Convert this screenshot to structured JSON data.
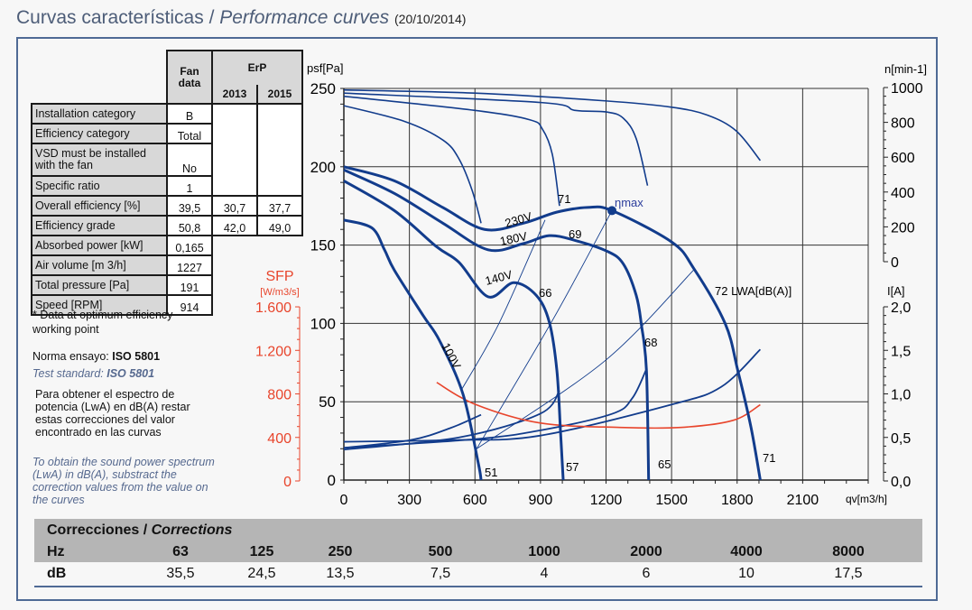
{
  "header": {
    "title_es": "Curvas características",
    "separator": " / ",
    "title_en": "Performance curves",
    "date": "(20/10/2014)"
  },
  "fan_table": {
    "col_fan": [
      "Fan",
      "data"
    ],
    "col_erp": "ErP",
    "col_2013": "2013",
    "col_2015": "2015",
    "rows": [
      {
        "label": "Installation category",
        "fan": "B",
        "y2013": "",
        "y2015": ""
      },
      {
        "label": "Efficiency category",
        "fan": "Total",
        "y2013": "",
        "y2015": ""
      },
      {
        "label": "VSD must be installed with the fan",
        "fan": "No",
        "y2013": "",
        "y2015": ""
      },
      {
        "label": "Specific ratio",
        "fan": "1",
        "y2013": "",
        "y2015": ""
      },
      {
        "label": "Overall efficiency [%]",
        "fan": "39,5",
        "y2013": "30,7",
        "y2015": "37,7"
      },
      {
        "label": "Efficiency grade",
        "fan": "50,8",
        "y2013": "42,0",
        "y2015": "49,0"
      },
      {
        "label": "Absorbed power [kW]",
        "fan": "0,165"
      },
      {
        "label": "Air volume [m 3/h]",
        "fan": "1227"
      },
      {
        "label": "Total pressure [Pa]",
        "fan": "191"
      },
      {
        "label": "Speed [RPM]",
        "fan": "914"
      }
    ]
  },
  "notes": {
    "optimum": "* Data at optimum efficiency working point",
    "norma_label": "Norma ensayo: ",
    "norma_value": "ISO 5801",
    "test_label": "Test standard: ",
    "test_value": "ISO 5801",
    "es_text": "Para obtener el espectro de potencia (LwA) en dB(A) restar estas correcciones del valor encontrado en las curvas",
    "en_text": "To obtain the sound power spectrum (LwA) in dB(A), substract the correction values from the value on the curves"
  },
  "corrections": {
    "title_es": "Correcciones / ",
    "title_en": "Corrections",
    "hz_label": "Hz",
    "db_label": "dB",
    "hz": [
      "63",
      "125",
      "250",
      "500",
      "1000",
      "2000",
      "4000",
      "8000"
    ],
    "db": [
      "35,5",
      "24,5",
      "13,5",
      "7,5",
      "4",
      "6",
      "10",
      "17,5"
    ]
  },
  "chart_data": {
    "type": "line",
    "xlabel": "qv[m3/h]",
    "ylabel": "psf[Pa]",
    "xlim": [
      0,
      2400
    ],
    "ylim": [
      0,
      250
    ],
    "x_ticks": [
      "0",
      "300",
      "600",
      "900",
      "1200",
      "1500",
      "1800",
      "2100"
    ],
    "y_ticks": [
      "0",
      "50",
      "100",
      "150",
      "200",
      "250"
    ],
    "grid": true,
    "right_axis_speed": {
      "label": "n[min-1]",
      "range": [
        0,
        1000
      ],
      "ticks": [
        "0",
        "200",
        "400",
        "600",
        "800",
        "1000"
      ]
    },
    "right_axis_current": {
      "label": "I[A]",
      "range": [
        0,
        2.0
      ],
      "ticks": [
        "0,0",
        "0,5",
        "1,0",
        "1,5",
        "2,0"
      ]
    },
    "left_axis_sfp": {
      "label": "SFP",
      "unit": "[W/m3/s]",
      "range": [
        0,
        1600
      ],
      "ticks": [
        "0",
        "400",
        "800",
        "1.200",
        "1.600"
      ],
      "color": "#e8452c"
    },
    "curve_color": "#123c8c",
    "pressure_curves": [
      {
        "name": "230V",
        "points": [
          [
            0,
            200
          ],
          [
            231,
            191
          ],
          [
            453,
            174
          ],
          [
            644,
            160
          ],
          [
            822,
            164
          ],
          [
            974,
            171
          ],
          [
            1115,
            174
          ],
          [
            1227,
            172
          ],
          [
            1500,
            152
          ],
          [
            1602,
            135
          ],
          [
            1745,
            100
          ],
          [
            1803,
            70
          ],
          [
            1863,
            34
          ],
          [
            1906,
            0
          ]
        ]
      },
      {
        "name": "180V",
        "points": [
          [
            0,
            198
          ],
          [
            231,
            183
          ],
          [
            453,
            164
          ],
          [
            660,
            147
          ],
          [
            822,
            151
          ],
          [
            940,
            156
          ],
          [
            1058,
            153
          ],
          [
            1206,
            146
          ],
          [
            1279,
            138
          ],
          [
            1338,
            118
          ],
          [
            1362,
            99
          ],
          [
            1385,
            70
          ],
          [
            1395,
            0
          ]
        ]
      },
      {
        "name": "140V",
        "points": [
          [
            0,
            191
          ],
          [
            231,
            172
          ],
          [
            424,
            149
          ],
          [
            527,
            139
          ],
          [
            660,
            117
          ],
          [
            777,
            126
          ],
          [
            880,
            118
          ],
          [
            940,
            101
          ],
          [
            975,
            70
          ],
          [
            992,
            30
          ],
          [
            1004,
            0
          ]
        ]
      },
      {
        "name": "100V",
        "points": [
          [
            0,
            166
          ],
          [
            128,
            161
          ],
          [
            186,
            147
          ],
          [
            231,
            134
          ],
          [
            363,
            105
          ],
          [
            438,
            89
          ],
          [
            545,
            55
          ],
          [
            615,
            11
          ],
          [
            628,
            0
          ]
        ]
      }
    ],
    "speed_curves": [
      {
        "points": [
          [
            0,
            249
          ],
          [
            600,
            247
          ],
          [
            1202,
            242
          ],
          [
            1500,
            238
          ],
          [
            1663,
            233
          ],
          [
            1795,
            223
          ],
          [
            1906,
            204
          ]
        ]
      },
      {
        "points": [
          [
            0,
            247
          ],
          [
            903,
            241
          ],
          [
            1058,
            236
          ],
          [
            1202,
            235
          ],
          [
            1279,
            231
          ],
          [
            1338,
            218
          ],
          [
            1390,
            188
          ]
        ]
      },
      {
        "points": [
          [
            0,
            245
          ],
          [
            599,
            236
          ],
          [
            851,
            230
          ],
          [
            909,
            224
          ],
          [
            954,
            208
          ],
          [
            987,
            175
          ]
        ]
      },
      {
        "points": [
          [
            0,
            239
          ],
          [
            277,
            229
          ],
          [
            454,
            217
          ],
          [
            527,
            205
          ],
          [
            587,
            185
          ],
          [
            628,
            164
          ]
        ]
      }
    ],
    "current_curves": [
      {
        "points": [
          [
            0,
            0.45
          ],
          [
            500,
            0.47
          ],
          [
            897,
            0.52
          ],
          [
            1503,
            0.88
          ],
          [
            1727,
            1.08
          ],
          [
            1906,
            1.51
          ]
        ]
      },
      {
        "points": [
          [
            0,
            0.38
          ],
          [
            600,
            0.48
          ],
          [
            897,
            0.58
          ],
          [
            1227,
            0.77
          ],
          [
            1320,
            0.95
          ],
          [
            1384,
            1.28
          ]
        ]
      },
      {
        "points": [
          [
            0,
            0.36
          ],
          [
            527,
            0.5
          ],
          [
            897,
            0.77
          ],
          [
            987,
            1.04
          ]
        ]
      },
      {
        "points": [
          [
            0,
            0.38
          ],
          [
            306,
            0.47
          ],
          [
            490,
            0.61
          ],
          [
            628,
            0.76
          ]
        ]
      }
    ],
    "sfp_curve": {
      "points": [
        [
          425,
          905
        ],
        [
          599,
          706
        ],
        [
          897,
          533
        ],
        [
          1264,
          492
        ],
        [
          1541,
          492
        ],
        [
          1780,
          556
        ],
        [
          1906,
          700
        ]
      ]
    },
    "system_lines": [
      {
        "points": [
          [
            540,
            58
          ],
          [
            710,
            100
          ],
          [
            921,
            166
          ]
        ]
      },
      {
        "points": [
          [
            608,
            20
          ],
          [
            959,
            103
          ],
          [
            1227,
            172
          ]
        ]
      },
      {
        "points": [
          [
            608,
            20
          ],
          [
            1194,
            76
          ],
          [
            1607,
            135
          ]
        ]
      }
    ],
    "eta_max": {
      "label": "ηmax",
      "x": 1227,
      "y": 172
    },
    "sound_labels": [
      "71",
      "69",
      "66",
      "68",
      "72 LWA[dB(A)]",
      "51",
      "57",
      "65",
      "71"
    ]
  }
}
